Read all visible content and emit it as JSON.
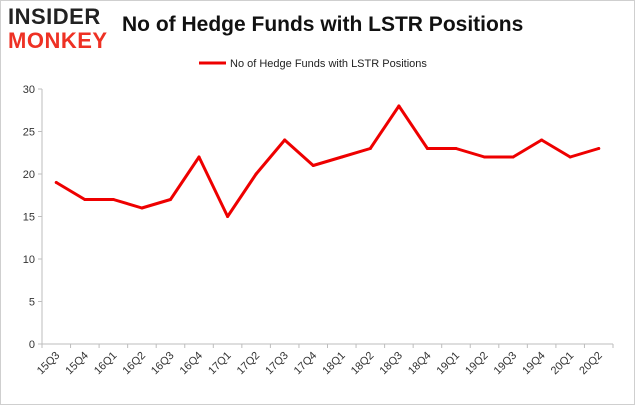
{
  "logo": {
    "line1": "INSIDER",
    "line2": "MONKEY"
  },
  "chart_data": {
    "type": "line",
    "title": "No of Hedge Funds with LSTR Positions",
    "categories": [
      "15Q3",
      "15Q4",
      "16Q1",
      "16Q2",
      "16Q3",
      "16Q4",
      "17Q1",
      "17Q2",
      "17Q3",
      "17Q4",
      "18Q1",
      "18Q2",
      "18Q3",
      "18Q4",
      "19Q1",
      "19Q2",
      "19Q3",
      "19Q4",
      "20Q1",
      "20Q2"
    ],
    "series": [
      {
        "name": "No of Hedge Funds with LSTR Positions",
        "color": "#ee0000",
        "values": [
          19,
          17,
          17,
          16,
          17,
          22,
          15,
          20,
          24,
          21,
          22,
          23,
          28,
          23,
          23,
          22,
          22,
          24,
          22,
          23
        ]
      }
    ],
    "xlabel": "",
    "ylabel": "",
    "ylim": [
      0,
      30
    ],
    "yticks": [
      0,
      5,
      10,
      15,
      20,
      25,
      30
    ],
    "grid": false,
    "legend_position": "top-center"
  }
}
